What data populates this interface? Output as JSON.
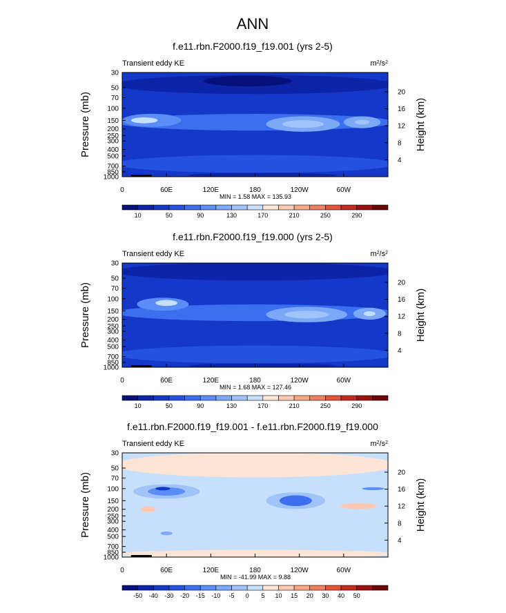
{
  "figure": {
    "title": "ANN"
  },
  "colorbars": {
    "abs": {
      "colors": [
        "#06107a",
        "#0c24a8",
        "#1438c8",
        "#2452de",
        "#3c6ef0",
        "#5c8cf6",
        "#7ca8f8",
        "#a0c4fa",
        "#c6e0fc",
        "#fde4d4",
        "#fcc8b0",
        "#f6a884",
        "#ee8060",
        "#e05438",
        "#c42a20",
        "#9a1210",
        "#6e0608"
      ],
      "tick_labels": [
        "10",
        "50",
        "90",
        "130",
        "170",
        "210",
        "250",
        "290"
      ]
    },
    "diff": {
      "colors": [
        "#06107a",
        "#0c24a8",
        "#1438c8",
        "#2452de",
        "#3c6ef0",
        "#5c8cf6",
        "#7ca8f8",
        "#a0c4fa",
        "#c6e0fc",
        "#fde4d4",
        "#fcc8b0",
        "#f6a884",
        "#ee8060",
        "#e05438",
        "#c42a20",
        "#9a1210",
        "#6e0608"
      ],
      "tick_labels": [
        "-50",
        "-40",
        "-30",
        "-20",
        "-15",
        "-10",
        "-5",
        "0",
        "5",
        "10",
        "15",
        "20",
        "30",
        "40",
        "50"
      ]
    }
  },
  "chart_data": [
    {
      "type": "heatmap",
      "title": "f.e11.rbn.F2000.f19_f19.001 (yrs 2-5)",
      "left_label": "Transient eddy KE",
      "units_base": "m",
      "units_exp1": "2",
      "units_sep": "/s",
      "units_exp2": "2",
      "ylabel": "Pressure (mb)",
      "y2label": "Height (km)",
      "x_ticks": [
        "0",
        "60E",
        "120E",
        "180",
        "120W",
        "60W"
      ],
      "y_ticks": [
        "30",
        "50",
        "70",
        "100",
        "150",
        "200",
        "250",
        "300",
        "400",
        "500",
        "700",
        "850",
        "1000"
      ],
      "y2_ticks": [
        "20",
        "16",
        "12",
        "8",
        "4"
      ],
      "stats": "MIN =   1.58  MAX = 135.93",
      "colorbar": "abs",
      "background": "#1438c8",
      "blobs": [
        {
          "lon": 180,
          "p": 45,
          "rlon": 190,
          "rlp": 0.32,
          "color": "#0c24a8"
        },
        {
          "lon": 180,
          "p": 650,
          "rlon": 190,
          "rlp": 0.3,
          "color": "#2452de"
        },
        {
          "lon": 190,
          "p": 950,
          "rlon": 100,
          "rlp": 0.08,
          "color": "#0c24a8"
        },
        {
          "lon": 170,
          "p": 40,
          "rlon": 60,
          "rlp": 0.18,
          "color": "#06107a"
        },
        {
          "lon": 180,
          "p": 160,
          "rlon": 190,
          "rlp": 0.28,
          "color": "#3c6ef0"
        },
        {
          "lon": 40,
          "p": 150,
          "rlon": 40,
          "rlp": 0.22,
          "color": "#5c8cf6"
        },
        {
          "lon": 30,
          "p": 150,
          "rlon": 18,
          "rlp": 0.1,
          "color": "#c6e0fc"
        },
        {
          "lon": 245,
          "p": 170,
          "rlon": 50,
          "rlp": 0.26,
          "color": "#7ca8f8"
        },
        {
          "lon": 245,
          "p": 170,
          "rlon": 28,
          "rlp": 0.13,
          "color": "#a0c4fa"
        },
        {
          "lon": 325,
          "p": 160,
          "rlon": 25,
          "rlp": 0.2,
          "color": "#7ca8f8"
        },
        {
          "lon": 325,
          "p": 160,
          "rlon": 10,
          "rlp": 0.08,
          "color": "#a0c4fa"
        }
      ]
    },
    {
      "type": "heatmap",
      "title": "f.e11.rbn.F2000.f19_f19.000 (yrs 2-5)",
      "left_label": "Transient eddy KE",
      "units_base": "m",
      "units_exp1": "2",
      "units_sep": "/s",
      "units_exp2": "2",
      "ylabel": "Pressure (mb)",
      "y2label": "Height (km)",
      "x_ticks": [
        "0",
        "60E",
        "120E",
        "180",
        "120W",
        "60W"
      ],
      "y_ticks": [
        "30",
        "50",
        "70",
        "100",
        "150",
        "200",
        "250",
        "300",
        "400",
        "500",
        "700",
        "850",
        "1000"
      ],
      "y2_ticks": [
        "20",
        "16",
        "12",
        "8",
        "4"
      ],
      "stats": "MIN =   1.68  MAX = 127.46",
      "colorbar": "abs",
      "background": "#1438c8",
      "blobs": [
        {
          "lon": 180,
          "p": 40,
          "rlon": 190,
          "rlp": 0.3,
          "color": "#0c24a8"
        },
        {
          "lon": 180,
          "p": 650,
          "rlon": 190,
          "rlp": 0.3,
          "color": "#2452de"
        },
        {
          "lon": 190,
          "p": 950,
          "rlon": 100,
          "rlp": 0.08,
          "color": "#0c24a8"
        },
        {
          "lon": 180,
          "p": 160,
          "rlon": 190,
          "rlp": 0.28,
          "color": "#3c6ef0"
        },
        {
          "lon": 55,
          "p": 120,
          "rlon": 35,
          "rlp": 0.22,
          "color": "#5c8cf6"
        },
        {
          "lon": 60,
          "p": 115,
          "rlon": 15,
          "rlp": 0.1,
          "color": "#c6e0fc"
        },
        {
          "lon": 250,
          "p": 170,
          "rlon": 55,
          "rlp": 0.26,
          "color": "#7ca8f8"
        },
        {
          "lon": 250,
          "p": 170,
          "rlon": 30,
          "rlp": 0.13,
          "color": "#a0c4fa"
        },
        {
          "lon": 335,
          "p": 165,
          "rlon": 22,
          "rlp": 0.2,
          "color": "#7ca8f8"
        },
        {
          "lon": 335,
          "p": 165,
          "rlon": 8,
          "rlp": 0.08,
          "color": "#c6e0fc"
        }
      ]
    },
    {
      "type": "heatmap",
      "title": "f.e11.rbn.F2000.f19_f19.001 - f.e11.rbn.F2000.f19_f19.000",
      "left_label": "Transient eddy KE",
      "units_base": "m",
      "units_exp1": "2",
      "units_sep": "/s",
      "units_exp2": "2",
      "ylabel": "Pressure (mb)",
      "y2label": "Height (km)",
      "x_ticks": [
        "0",
        "60E",
        "120E",
        "180",
        "120W",
        "60W"
      ],
      "y_ticks": [
        "30",
        "50",
        "70",
        "100",
        "150",
        "200",
        "250",
        "300",
        "400",
        "500",
        "700",
        "850",
        "1000"
      ],
      "y2_ticks": [
        "20",
        "16",
        "12",
        "8",
        "4"
      ],
      "stats": "MIN = -41.99  MAX =   9.88",
      "colorbar": "diff",
      "background": "#c6e0fc",
      "blobs": [
        {
          "lon": 180,
          "p": 45,
          "rlon": 190,
          "rlp": 0.42,
          "color": "#fde4d4"
        },
        {
          "lon": 180,
          "p": 900,
          "rlon": 190,
          "rlp": 0.14,
          "color": "#fde4d4"
        },
        {
          "lon": 60,
          "p": 110,
          "rlon": 45,
          "rlp": 0.24,
          "color": "#a0c4fa"
        },
        {
          "lon": 60,
          "p": 110,
          "rlon": 25,
          "rlp": 0.14,
          "color": "#5c8cf6"
        },
        {
          "lon": 55,
          "p": 100,
          "rlon": 10,
          "rlp": 0.06,
          "color": "#1438c8"
        },
        {
          "lon": 235,
          "p": 150,
          "rlon": 40,
          "rlp": 0.28,
          "color": "#a0c4fa"
        },
        {
          "lon": 235,
          "p": 150,
          "rlon": 22,
          "rlp": 0.18,
          "color": "#3c6ef0"
        },
        {
          "lon": 320,
          "p": 180,
          "rlon": 25,
          "rlp": 0.1,
          "color": "#fcc8b0"
        },
        {
          "lon": 340,
          "p": 100,
          "rlon": 15,
          "rlp": 0.05,
          "color": "#5c8cf6"
        },
        {
          "lon": 35,
          "p": 200,
          "rlon": 10,
          "rlp": 0.1,
          "color": "#fcc8b0"
        },
        {
          "lon": 60,
          "p": 450,
          "rlon": 8,
          "rlp": 0.06,
          "color": "#7ca8f8"
        }
      ]
    }
  ]
}
